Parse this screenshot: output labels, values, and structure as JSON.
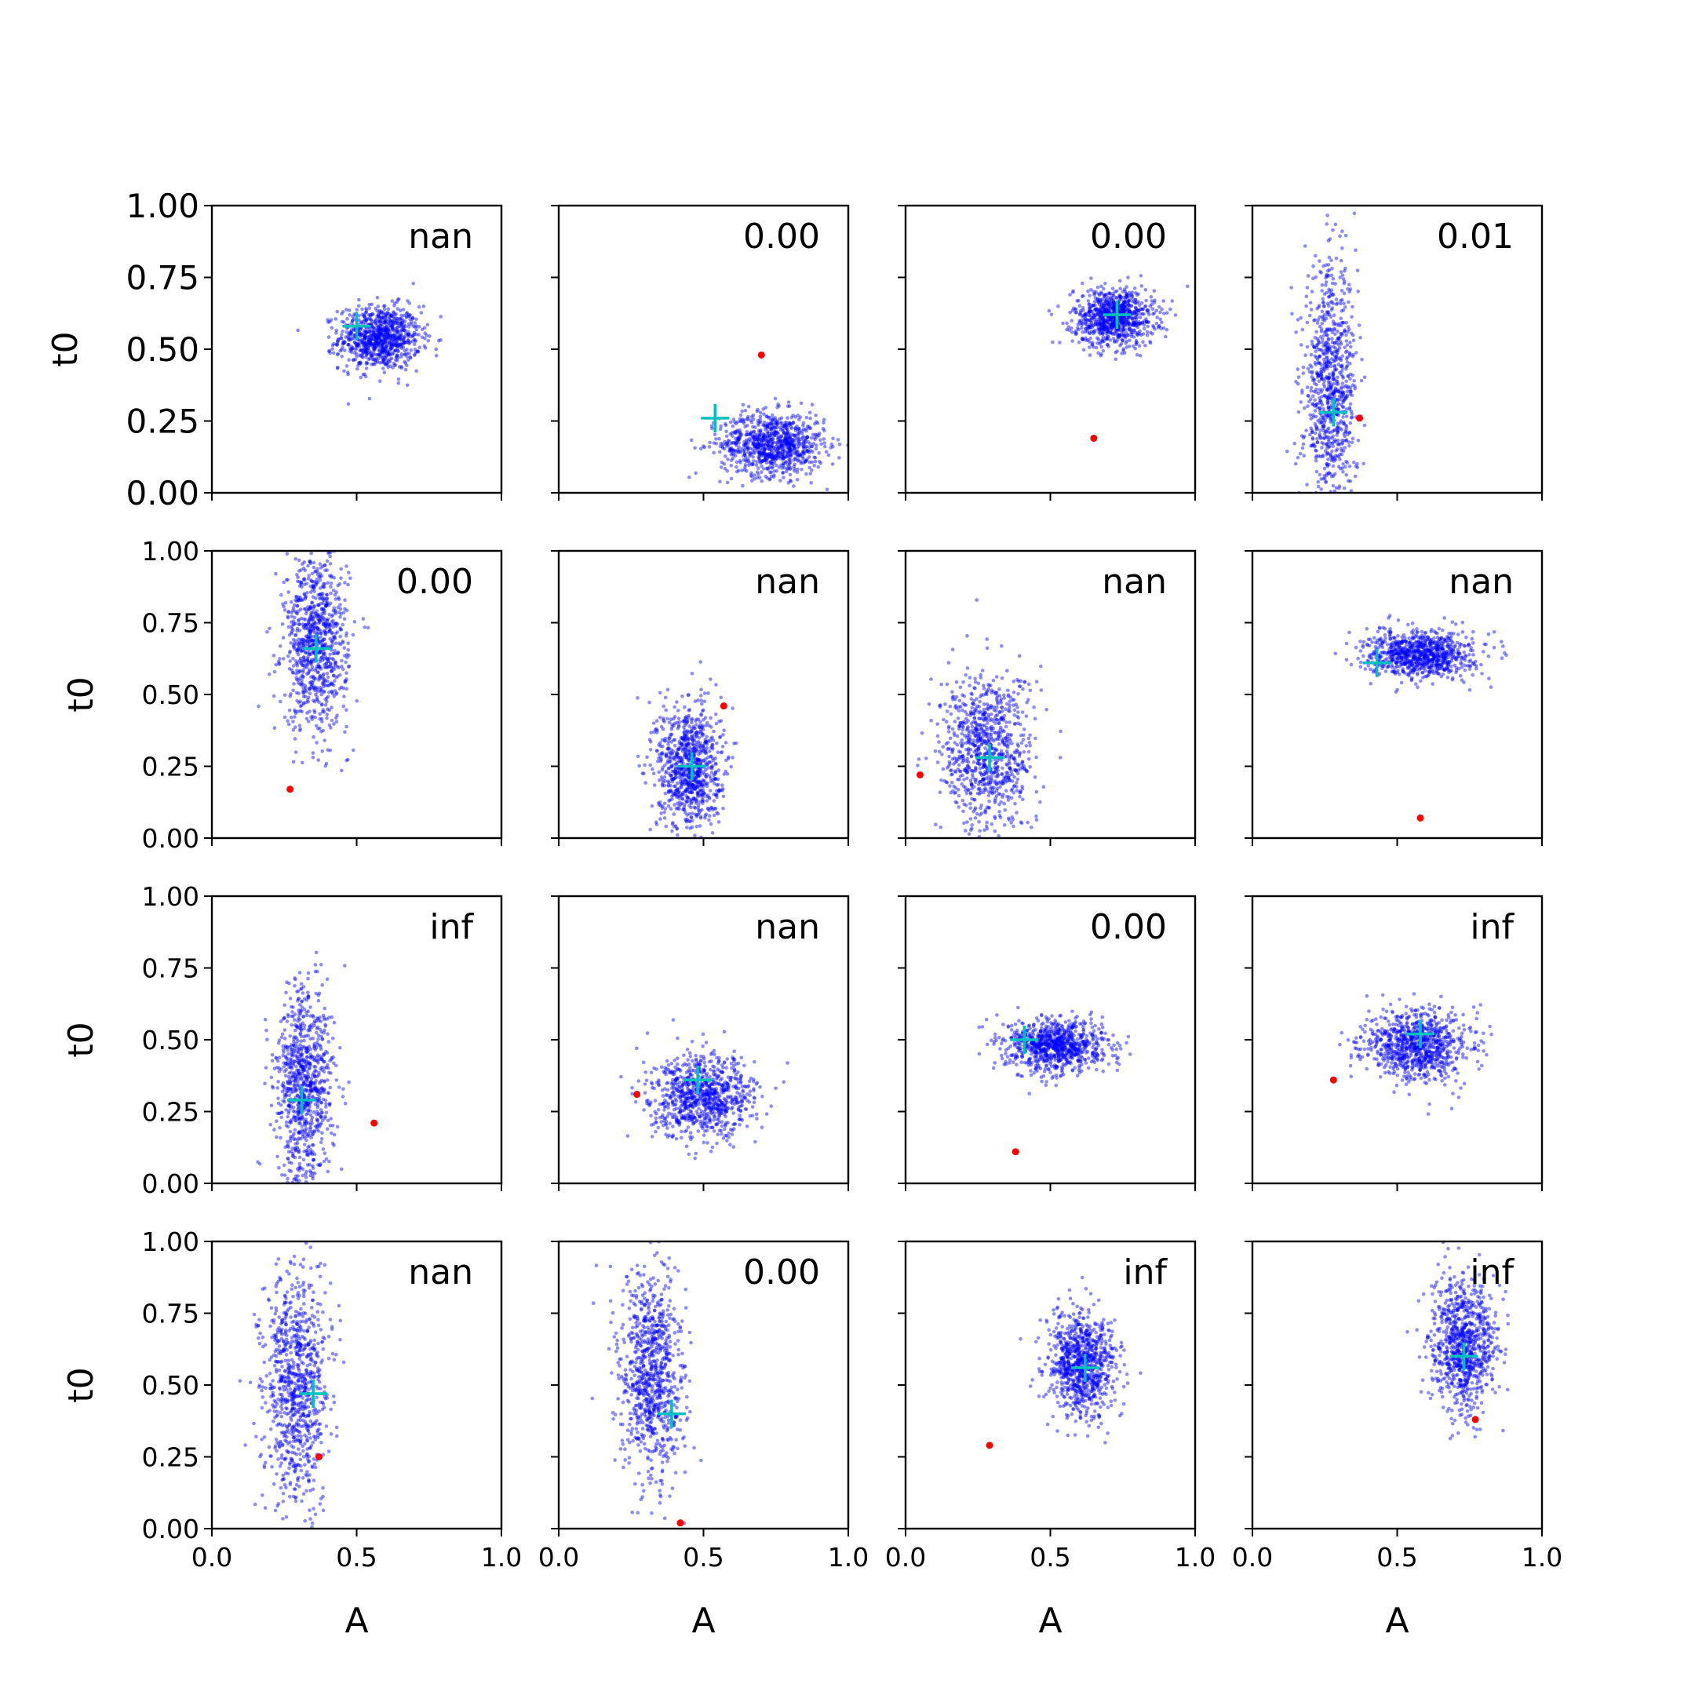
{
  "colors": {
    "points": "#0000ff",
    "truth": "#ff0000",
    "estimate": "#00bfbf",
    "axes": "#000000"
  },
  "chart_data": {
    "type": "scatter",
    "layout": "4x4 grid of subplots",
    "xlabel": "A",
    "ylabel": "t0",
    "xlim": [
      0,
      1
    ],
    "ylim": [
      0,
      1
    ],
    "x_ticks": [
      "0.0",
      "0.5",
      "1.0"
    ],
    "y_ticks": [
      "0.00",
      "0.25",
      "0.50",
      "0.75",
      "1.00"
    ],
    "panels": [
      {
        "label": "nan",
        "cloud": {
          "cx": 0.58,
          "cy": 0.54,
          "sx": 0.07,
          "sy": 0.055
        },
        "truth": null,
        "estimate": [
          0.5,
          0.58
        ]
      },
      {
        "label": "0.00",
        "cloud": {
          "cx": 0.74,
          "cy": 0.17,
          "sx": 0.09,
          "sy": 0.055
        },
        "truth": [
          0.7,
          0.48
        ],
        "estimate": [
          0.54,
          0.26
        ]
      },
      {
        "label": "0.00",
        "cloud": {
          "cx": 0.72,
          "cy": 0.61,
          "sx": 0.07,
          "sy": 0.05
        },
        "truth": [
          0.65,
          0.19
        ],
        "estimate": [
          0.73,
          0.62
        ]
      },
      {
        "label": "0.01",
        "cloud": {
          "cx": 0.27,
          "cy": 0.35,
          "sx": 0.045,
          "sy": 0.22
        },
        "truth": [
          0.37,
          0.26
        ],
        "estimate": [
          0.28,
          0.28
        ]
      },
      {
        "label": "0.00",
        "cloud": {
          "cx": 0.36,
          "cy": 0.68,
          "sx": 0.055,
          "sy": 0.15
        },
        "truth": [
          0.27,
          0.17
        ],
        "estimate": [
          0.36,
          0.66
        ]
      },
      {
        "label": "nan",
        "cloud": {
          "cx": 0.45,
          "cy": 0.25,
          "sx": 0.055,
          "sy": 0.11
        },
        "truth": [
          0.57,
          0.46
        ],
        "estimate": [
          0.46,
          0.25
        ]
      },
      {
        "label": "nan",
        "cloud": {
          "cx": 0.28,
          "cy": 0.3,
          "sx": 0.08,
          "sy": 0.14
        },
        "truth": [
          0.05,
          0.22
        ],
        "estimate": [
          0.29,
          0.28
        ]
      },
      {
        "label": "nan",
        "cloud": {
          "cx": 0.58,
          "cy": 0.64,
          "sx": 0.09,
          "sy": 0.04
        },
        "truth": [
          0.58,
          0.07
        ],
        "estimate": [
          0.43,
          0.61
        ]
      },
      {
        "label": "inf",
        "cloud": {
          "cx": 0.32,
          "cy": 0.34,
          "sx": 0.05,
          "sy": 0.17
        },
        "truth": [
          0.56,
          0.21
        ],
        "estimate": [
          0.31,
          0.29
        ]
      },
      {
        "label": "nan",
        "cloud": {
          "cx": 0.5,
          "cy": 0.3,
          "sx": 0.09,
          "sy": 0.07
        },
        "truth": [
          0.27,
          0.31
        ],
        "estimate": [
          0.48,
          0.36
        ]
      },
      {
        "label": "0.00",
        "cloud": {
          "cx": 0.52,
          "cy": 0.48,
          "sx": 0.085,
          "sy": 0.045
        },
        "truth": [
          0.38,
          0.11
        ],
        "estimate": [
          0.41,
          0.5
        ]
      },
      {
        "label": "inf",
        "cloud": {
          "cx": 0.57,
          "cy": 0.48,
          "sx": 0.09,
          "sy": 0.06
        },
        "truth": [
          0.28,
          0.36
        ],
        "estimate": [
          0.58,
          0.52
        ]
      },
      {
        "label": "nan",
        "cloud": {
          "cx": 0.29,
          "cy": 0.5,
          "sx": 0.055,
          "sy": 0.2
        },
        "truth": [
          0.37,
          0.25
        ],
        "estimate": [
          0.35,
          0.47
        ]
      },
      {
        "label": "0.00",
        "cloud": {
          "cx": 0.32,
          "cy": 0.52,
          "sx": 0.055,
          "sy": 0.19
        },
        "truth": [
          0.42,
          0.02
        ],
        "estimate": [
          0.39,
          0.4
        ]
      },
      {
        "label": "inf",
        "cloud": {
          "cx": 0.61,
          "cy": 0.57,
          "sx": 0.06,
          "sy": 0.09
        },
        "truth": [
          0.29,
          0.29
        ],
        "estimate": [
          0.62,
          0.56
        ]
      },
      {
        "label": "inf",
        "cloud": {
          "cx": 0.73,
          "cy": 0.64,
          "sx": 0.055,
          "sy": 0.11
        },
        "truth": [
          0.77,
          0.38
        ],
        "estimate": [
          0.73,
          0.6
        ]
      }
    ]
  }
}
